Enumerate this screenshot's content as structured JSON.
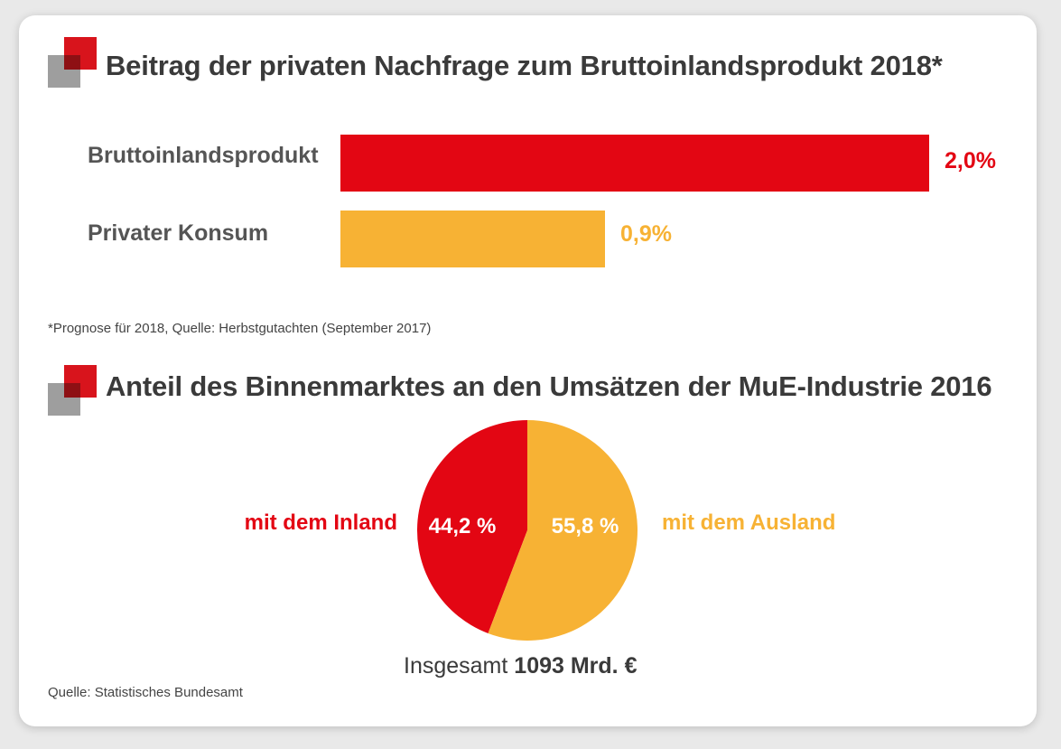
{
  "colors": {
    "red": "#e30613",
    "yellow": "#f7b234",
    "gray": "#9e9e9e",
    "text": "#3a3a3a"
  },
  "chart_data": [
    {
      "type": "bar",
      "title": "Beitrag der privaten Nachfrage zum Bruttoinlandsprodukt 2018*",
      "categories": [
        "Bruttoinlandsprodukt",
        "Privater Konsum"
      ],
      "values": [
        2.0,
        0.9
      ],
      "value_labels": [
        "2,0%",
        "0,9%"
      ],
      "bar_colors": [
        "#e30613",
        "#f7b234"
      ],
      "xlim": [
        0,
        2.0
      ],
      "grid": false,
      "orientation": "horizontal",
      "footnote": "*Prognose für 2018, Quelle: Herbstgutachten (September 2017)"
    },
    {
      "type": "pie",
      "title": "Anteil des Binnenmarktes an den Umsätzen der MuE-Industrie 2016",
      "categories": [
        "mit dem Inland",
        "mit dem Ausland"
      ],
      "values": [
        44.2,
        55.8
      ],
      "value_labels": [
        "44,2 %",
        "55,8 %"
      ],
      "slice_colors": [
        "#e30613",
        "#f7b234"
      ],
      "total_prefix": "Insgesamt",
      "total_value": "1093 Mrd. €",
      "source": "Quelle: Statistisches Bundesamt"
    }
  ]
}
